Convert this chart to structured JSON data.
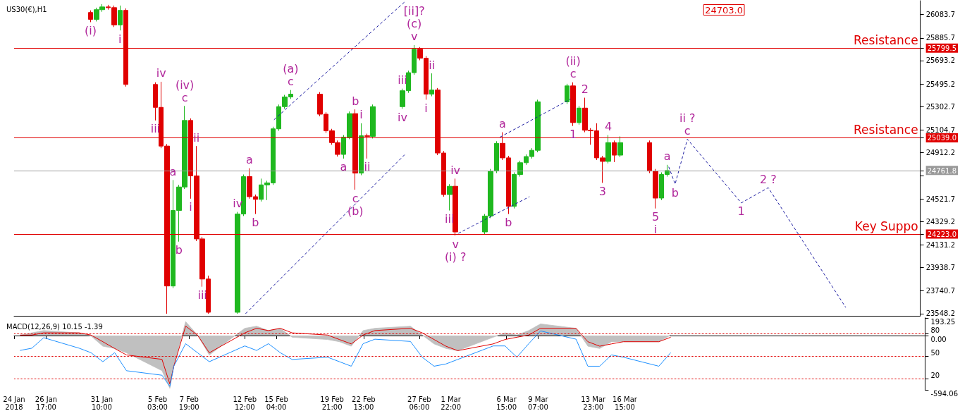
{
  "chart_data": [
    {
      "type": "candlestick",
      "title": "US30(€),H1",
      "tick_labels": "y",
      "xlim": [
        "2018-01-24T00:00",
        "2018-04-11T00:00"
      ],
      "ylim": [
        23530,
        26201
      ],
      "yticks": [
        23548.2,
        23740.7,
        23938.7,
        24131.2,
        {
          "value": 24223,
          "label": "24223.0"
        },
        24329.2,
        24521.7,
        {
          "value": 24719.7,
          "label": null
        },
        24761.8,
        24912.2,
        {
          "value": 25039,
          "label": "25039.0"
        },
        25104.7,
        25302.7,
        25495.2,
        25693.2,
        25799.5,
        25885.7,
        26083.7
      ],
      "x": [
        "2018-01-30T12:00",
        "2018-01-31T00:00",
        "2018-01-31T12:00",
        "2018-02-01T00:00",
        "2018-02-01T12:00",
        "2018-02-02T00:00",
        "2018-02-02T12:00",
        "2018-02-05T00:00",
        "2018-02-05T12:00",
        "2018-02-06T00:00",
        "2018-02-06T12:00",
        "2018-02-07T00:00",
        "2018-02-07T12:00",
        "2018-02-08T00:00",
        "2018-02-08T12:00",
        "2018-02-09T00:00",
        "2018-02-09T12:00",
        "2018-02-12T00:00",
        "2018-02-12T12:00",
        "2018-02-13T00:00",
        "2018-02-13T12:00",
        "2018-02-14T00:00",
        "2018-02-14T12:00",
        "2018-02-15T00:00",
        "2018-02-15T12:00",
        "2018-02-16T00:00",
        "2018-02-16T12:00",
        "2018-02-19T00:00",
        "2018-02-19T12:00",
        "2018-02-20T00:00",
        "2018-02-20T12:00",
        "2018-02-21T00:00",
        "2018-02-21T12:00",
        "2018-02-22T00:00",
        "2018-02-22T12:00",
        "2018-02-23T00:00",
        "2018-02-23T12:00",
        "2018-02-26T00:00",
        "2018-02-26T12:00",
        "2018-02-27T00:00",
        "2018-02-27T12:00",
        "2018-02-28T00:00",
        "2018-02-28T12:00",
        "2018-03-01T00:00",
        "2018-03-01T12:00",
        "2018-03-02T00:00",
        "2018-03-02T12:00",
        "2018-03-05T00:00",
        "2018-03-05T12:00",
        "2018-03-06T00:00",
        "2018-03-06T12:00",
        "2018-03-07T00:00",
        "2018-03-07T12:00",
        "2018-03-08T00:00",
        "2018-03-08T12:00",
        "2018-03-09T00:00",
        "2018-03-09T12:00",
        "2018-03-12T00:00",
        "2018-03-12T12:00",
        "2018-03-13T00:00",
        "2018-03-13T12:00",
        "2018-03-14T00:00",
        "2018-03-14T12:00",
        "2018-03-15T00:00",
        "2018-03-15T12:00",
        "2018-03-16T00:00",
        "2018-03-16T12:00",
        "2018-03-19T00:00",
        "2018-03-19T12:00",
        "2018-03-20T00:00",
        "2018-03-20T12:00"
      ],
      "ohlc": [
        [
          26101,
          26119,
          26019,
          26043
        ],
        [
          26043,
          26142,
          26025,
          26125
        ],
        [
          26125,
          26172,
          26107,
          26148
        ],
        [
          26148,
          26166,
          26125,
          26142
        ],
        [
          26142,
          26160,
          25978,
          25996
        ],
        [
          25996,
          26160,
          25949,
          26119
        ],
        [
          26119,
          26136,
          25473,
          25491
        ],
        [
          25491,
          25509,
          25186,
          25297
        ],
        [
          25297,
          25514,
          24951,
          24969
        ],
        [
          24969,
          24986,
          23548,
          23783
        ],
        [
          23783,
          24681,
          23765,
          24423
        ],
        [
          24423,
          24640,
          24159,
          24622
        ],
        [
          24622,
          25309,
          24605,
          25186
        ],
        [
          25186,
          25203,
          24523,
          24716
        ],
        [
          24716,
          24969,
          24164,
          24182
        ],
        [
          24182,
          24200,
          23777,
          23842
        ],
        [
          23842,
          23871,
          23548,
          23560
        ],
        [
          23560,
          24411,
          23548,
          24393
        ],
        [
          24393,
          24728,
          24376,
          24710
        ],
        [
          24710,
          24781,
          24523,
          24540
        ],
        [
          24540,
          24558,
          24393,
          24517
        ],
        [
          24517,
          24693,
          24499,
          24640
        ],
        [
          24640,
          24675,
          24511,
          24657
        ],
        [
          24657,
          25133,
          24640,
          25115
        ],
        [
          25115,
          25321,
          25098,
          25303
        ],
        [
          25303,
          25403,
          25285,
          25385
        ],
        [
          25385,
          25444,
          25368,
          25409
        ],
        [
          25409,
          25426,
          25221,
          25239
        ],
        [
          25239,
          25256,
          25080,
          25098
        ],
        [
          25098,
          25115,
          24980,
          24998
        ],
        [
          24998,
          25016,
          24880,
          24898
        ],
        [
          24898,
          25062,
          24863,
          25045
        ],
        [
          25045,
          25262,
          25027,
          25244
        ],
        [
          25244,
          25280,
          24599,
          24740
        ],
        [
          24740,
          25162,
          24722,
          25056
        ],
        [
          25056,
          25074,
          24863,
          25051
        ],
        [
          25051,
          25321,
          25033,
          25303
        ],
        [
          25303,
          25456,
          25285,
          25438
        ],
        [
          25438,
          25608,
          25420,
          25591
        ],
        [
          25591,
          25825,
          25573,
          25790
        ],
        [
          25790,
          25808,
          25696,
          25714
        ],
        [
          25714,
          25732,
          25362,
          25409
        ],
        [
          25409,
          25585,
          25391,
          25444
        ],
        [
          25444,
          25461,
          24892,
          24910
        ],
        [
          24910,
          24927,
          24540,
          24558
        ],
        [
          24558,
          24646,
          24423,
          24628
        ],
        [
          24628,
          24693,
          24211,
          24241
        ],
        [
          24241,
          24393,
          24223,
          24376
        ],
        [
          24376,
          24775,
          24358,
          24757
        ],
        [
          24757,
          25010,
          24740,
          24992
        ],
        [
          24992,
          25086,
          24851,
          24869
        ],
        [
          24869,
          24886,
          24393,
          24458
        ],
        [
          24458,
          24746,
          24440,
          24728
        ],
        [
          24728,
          24845,
          24710,
          24828
        ],
        [
          24828,
          24898,
          24810,
          24880
        ],
        [
          24880,
          24951,
          24863,
          24933
        ],
        [
          24933,
          25362,
          24916,
          25344
        ],
        [
          25344,
          25497,
          25326,
          25479
        ],
        [
          25479,
          25509,
          25139,
          25168
        ],
        [
          25168,
          25309,
          25150,
          25291
        ],
        [
          25291,
          25379,
          25086,
          25103
        ],
        [
          25103,
          25121,
          24980,
          25098
        ],
        [
          25098,
          25162,
          24851,
          24869
        ],
        [
          24869,
          24886,
          24657,
          24839
        ],
        [
          24839,
          25062,
          24822,
          24998
        ],
        [
          24998,
          25016,
          24833,
          24892
        ],
        [
          24892,
          25051,
          24875,
          24998
        ],
        [
          24998,
          25016,
          24740,
          24757
        ],
        [
          24757,
          24775,
          24440,
          24528
        ],
        [
          24528,
          24746,
          24511,
          24728
        ],
        [
          24728,
          24810,
          24710,
          24761.8
        ]
      ],
      "marker": "none",
      "series": [
        {
          "type": "line",
          "color": "#1a1aa0",
          "line_style": "dashed",
          "x": [
            "2018-02-15T02:00",
            "2018-02-26T04:00"
          ],
          "values": [
            25192,
            26189
          ]
        },
        {
          "type": "line",
          "color": "#1a1aa0",
          "line_style": "dashed",
          "x": [
            "2018-02-12T16:00",
            "2018-02-26T05:00"
          ],
          "values": [
            23548,
            24898
          ]
        },
        {
          "type": "line",
          "color": "#1a1aa0",
          "line_style": "dashed",
          "x": [
            "2018-03-02T18:00",
            "2018-03-08T19:00"
          ],
          "values": [
            24229,
            24540
          ]
        },
        {
          "type": "line",
          "color": "#1a1aa0",
          "line_style": "dashed",
          "x": [
            "2018-03-06T07:00",
            "2018-03-12T07:00"
          ],
          "values": [
            25045,
            25368
          ]
        },
        {
          "type": "line",
          "color": "#1a1aa0",
          "line_style": "dashed",
          "x": [
            "2018-03-20T15:00",
            "2018-03-21T04:00",
            "2018-03-22T05:00",
            "2018-03-26T19:00",
            "2018-03-29T02:00",
            "2018-04-04T16:00"
          ],
          "values": [
            24793,
            24646,
            25027,
            24487,
            24616,
            23601
          ]
        }
      ],
      "ref_lines": [
        {
          "axis": "y",
          "value": 25799.5,
          "label": "Resistance",
          "color": "#e00000",
          "line_style": "solid"
        },
        {
          "axis": "y",
          "value": 25039.0,
          "label": "Resistance",
          "color": "#e00000",
          "line_style": "solid"
        },
        {
          "axis": "y",
          "value": 24223.0,
          "label": "Key Suppo",
          "color": "#e00000",
          "line_style": "solid"
        },
        {
          "axis": "y",
          "value": 24761.8,
          "color": "#9a9a9a",
          "line_style": "solid"
        }
      ],
      "annotations": [
        {
          "text": "(i)",
          "x": "2018-01-30T12:00",
          "y": 26019
        },
        {
          "text": "i",
          "x": "2018-02-02T00:00",
          "y": 25949
        },
        {
          "text": "iv",
          "x": "2018-02-05T12:00",
          "y": 25514
        },
        {
          "text": "iii",
          "x": "2018-02-05T00:00",
          "y": 25186
        },
        {
          "text": "c",
          "x": "2018-02-07T12:00",
          "y": 25309
        },
        {
          "text": "(iv)",
          "x": "2018-02-07T12:00",
          "y": 25309
        },
        {
          "text": "ii",
          "x": "2018-02-08T12:00",
          "y": 24969
        },
        {
          "text": "a",
          "x": "2018-02-06T12:00",
          "y": 24681
        },
        {
          "text": "i",
          "x": "2018-02-08T00:00",
          "y": 24523
        },
        {
          "text": "b",
          "x": "2018-02-07T00:00",
          "y": 24159
        },
        {
          "text": "iv",
          "x": "2018-02-12T00:00",
          "y": 24411
        },
        {
          "text": "iii",
          "x": "2018-02-09T00:00",
          "y": 23777
        },
        {
          "text": "a",
          "x": "2018-02-13T00:00",
          "y": 24781
        },
        {
          "text": "b",
          "x": "2018-02-13T12:00",
          "y": 24393
        },
        {
          "text": "c",
          "x": "2018-02-16T12:00",
          "y": 25444
        },
        {
          "text": "(a)",
          "x": "2018-02-16T12:00",
          "y": 25444
        },
        {
          "text": "a",
          "x": "2018-02-21T00:00",
          "y": 24863
        },
        {
          "text": "b",
          "x": "2018-02-22T00:00",
          "y": 25280
        },
        {
          "text": "c",
          "x": "2018-02-22T00:00",
          "y": 24599
        },
        {
          "text": "(b)",
          "x": "2018-02-22T00:00",
          "y": 24599
        },
        {
          "text": "i",
          "x": "2018-02-22T12:00",
          "y": 25162
        },
        {
          "text": "ii",
          "x": "2018-02-23T00:00",
          "y": 24863
        },
        {
          "text": "v",
          "x": "2018-02-27T00:00",
          "y": 25825
        },
        {
          "text": "(c)",
          "x": "2018-02-27T00:00",
          "y": 25825
        },
        {
          "text": "[ii]?",
          "x": "2018-02-27T00:00",
          "y": 25825
        },
        {
          "text": "iii",
          "x": "2018-02-26T00:00",
          "y": 25456
        },
        {
          "text": "iv",
          "x": "2018-02-26T00:00",
          "y": 25285
        },
        {
          "text": "ii",
          "x": "2018-02-28T12:00",
          "y": 25585
        },
        {
          "text": "i",
          "x": "2018-02-28T00:00",
          "y": 25362
        },
        {
          "text": "iv",
          "x": "2018-03-02T12:00",
          "y": 24693
        },
        {
          "text": "iii",
          "x": "2018-03-02T00:00",
          "y": 24423
        },
        {
          "text": "v",
          "x": "2018-03-02T12:00",
          "y": 24211
        },
        {
          "text": "(i) ?",
          "x": "2018-03-02T12:00",
          "y": 24211
        },
        {
          "text": "a",
          "x": "2018-03-06T12:00",
          "y": 25086
        },
        {
          "text": "b",
          "x": "2018-03-07T00:00",
          "y": 24393
        },
        {
          "text": "c",
          "x": "2018-03-12T12:00",
          "y": 25509
        },
        {
          "text": "(ii)",
          "x": "2018-03-12T12:00",
          "y": 25509
        },
        {
          "text": "1",
          "x": "2018-03-12T12:00",
          "y": 25139
        },
        {
          "text": "2",
          "x": "2018-03-13T12:00",
          "y": 25379
        },
        {
          "text": "4",
          "x": "2018-03-15T12:00",
          "y": 25062
        },
        {
          "text": "3",
          "x": "2018-03-15T00:00",
          "y": 24657
        },
        {
          "text": "5",
          "x": "2018-03-19T12:00",
          "y": 24440
        },
        {
          "text": "i",
          "x": "2018-03-19T12:00",
          "y": 24440
        },
        {
          "text": "a",
          "x": "2018-03-20T12:00",
          "y": 24810
        },
        {
          "text": "b",
          "x": "2018-03-21T04:00",
          "y": 24646
        },
        {
          "text": "c",
          "x": "2018-03-22T05:00",
          "y": 25027
        },
        {
          "text": "ii ?",
          "x": "2018-03-22T05:00",
          "y": 25027
        },
        {
          "text": "1",
          "x": "2018-03-26T19:00",
          "y": 24487
        },
        {
          "text": "2 ?",
          "x": "2018-03-29T02:00",
          "y": 24616
        },
        "24703.0"
      ]
    },
    {
      "type": "line",
      "title": "MACD(12,26,9) 10.15 -1.39",
      "xlim": [
        "2018-01-24T00:00",
        "2018-04-11T00:00"
      ],
      "xticks": [
        {
          "value": "2018-01-24T00:00",
          "label": "24 Jan 2018"
        },
        {
          "value": "2018-01-26T17:00",
          "label": "26 Jan 17:00"
        },
        {
          "value": "2018-01-31T10:00",
          "label": "31 Jan 10:00"
        },
        {
          "value": "2018-02-05T03:00",
          "label": "5 Feb 03:00"
        },
        {
          "value": "2018-02-07T19:00",
          "label": "7 Feb 19:00"
        },
        {
          "value": "2018-02-12T12:00",
          "label": "12 Feb 12:00"
        },
        {
          "value": "2018-02-15T04:00",
          "label": "15 Feb 04:00"
        },
        {
          "value": "2018-02-19T21:00",
          "label": "19 Feb 21:00"
        },
        {
          "value": "2018-02-22T13:00",
          "label": "22 Feb 13:00"
        },
        {
          "value": "2018-02-27T06:00",
          "label": "27 Feb 06:00"
        },
        {
          "value": "2018-03-01T22:00",
          "label": "1 Mar 22:00"
        },
        {
          "value": "2018-03-06T15:00",
          "label": "6 Mar 15:00"
        },
        {
          "value": "2018-03-09T07:00",
          "label": "9 Mar 07:00"
        },
        {
          "value": "2018-03-13T23:00",
          "label": "13 Mar 23:00"
        },
        {
          "value": "2018-03-16T15:00",
          "label": "16 Mar 15:00"
        }
      ],
      "ylim": [
        -594.06,
        193.25
      ],
      "yticks": [
        -594.06,
        {
          "value": 0,
          "label": "0.00"
        },
        193.25
      ],
      "y2lim": [
        5.5,
        101.3
      ],
      "y2ticks": [
        20,
        50,
        80
      ],
      "marker": "none",
      "x": [
        "2018-01-24T12:00",
        "2018-01-25T12:00",
        "2018-01-26T12:00",
        "2018-01-29T12:00",
        "2018-01-30T12:00",
        "2018-01-31T12:00",
        "2018-02-01T12:00",
        "2018-02-02T12:00",
        "2018-02-05T12:00",
        "2018-02-06T04:00",
        "2018-02-06T12:00",
        "2018-02-07T12:00",
        "2018-02-08T12:00",
        "2018-02-09T12:00",
        "2018-02-12T12:00",
        "2018-02-13T12:00",
        "2018-02-14T12:00",
        "2018-02-15T12:00",
        "2018-02-16T12:00",
        "2018-02-19T12:00",
        "2018-02-20T12:00",
        "2018-02-21T12:00",
        "2018-02-22T12:00",
        "2018-02-23T12:00",
        "2018-02-26T12:00",
        "2018-02-27T12:00",
        "2018-02-28T12:00",
        "2018-03-01T12:00",
        "2018-03-02T12:00",
        "2018-03-05T12:00",
        "2018-03-06T12:00",
        "2018-03-07T12:00",
        "2018-03-08T12:00",
        "2018-03-09T12:00",
        "2018-03-12T12:00",
        "2018-03-13T12:00",
        "2018-03-14T12:00",
        "2018-03-15T12:00",
        "2018-03-16T12:00",
        "2018-03-19T12:00",
        "2018-03-20T12:00"
      ],
      "series": [
        {
          "type": "area",
          "color": "#c0c0c0",
          "values": [
            2,
            30,
            55,
            30,
            -4,
            -116,
            -141,
            -188,
            -384,
            -578,
            -335,
            153,
            6,
            -212,
            80,
            103,
            55,
            80,
            -18,
            -43,
            -67,
            -116,
            55,
            80,
            103,
            6,
            -91,
            -141,
            -165,
            -18,
            30,
            6,
            55,
            128,
            80,
            -116,
            -141,
            -67,
            -67,
            -67,
            6
          ]
        },
        {
          "type": "line",
          "color": "#e00000",
          "values": [
            6,
            6,
            30,
            30,
            6,
            -67,
            -141,
            -212,
            -260,
            -530,
            -335,
            103,
            6,
            -188,
            30,
            80,
            55,
            80,
            30,
            6,
            -43,
            -91,
            6,
            55,
            80,
            30,
            -43,
            -116,
            -165,
            -91,
            -43,
            -18,
            6,
            80,
            80,
            -67,
            -116,
            -91,
            -67,
            -67,
            -18
          ]
        },
        {
          "type": "line",
          "color": "#1e90ff",
          "axis": "y2",
          "values": [
            58,
            61,
            75,
            61,
            55,
            43,
            55,
            31,
            25,
            10,
            37,
            67,
            55,
            43,
            64,
            58,
            67,
            55,
            46,
            49,
            43,
            37,
            67,
            73,
            70,
            49,
            37,
            40,
            46,
            64,
            64,
            49,
            67,
            84,
            73,
            37,
            37,
            52,
            49,
            37,
            55
          ]
        }
      ],
      "ref_lines": [
        {
          "axis": "y2",
          "value": 80,
          "color": "#e00000",
          "line_style": "dotted"
        },
        {
          "axis": "y2",
          "value": 50,
          "color": "#e00000",
          "line_style": "dotted"
        },
        {
          "axis": "y2",
          "value": 20,
          "color": "#e00000",
          "line_style": "dotted"
        }
      ]
    }
  ]
}
